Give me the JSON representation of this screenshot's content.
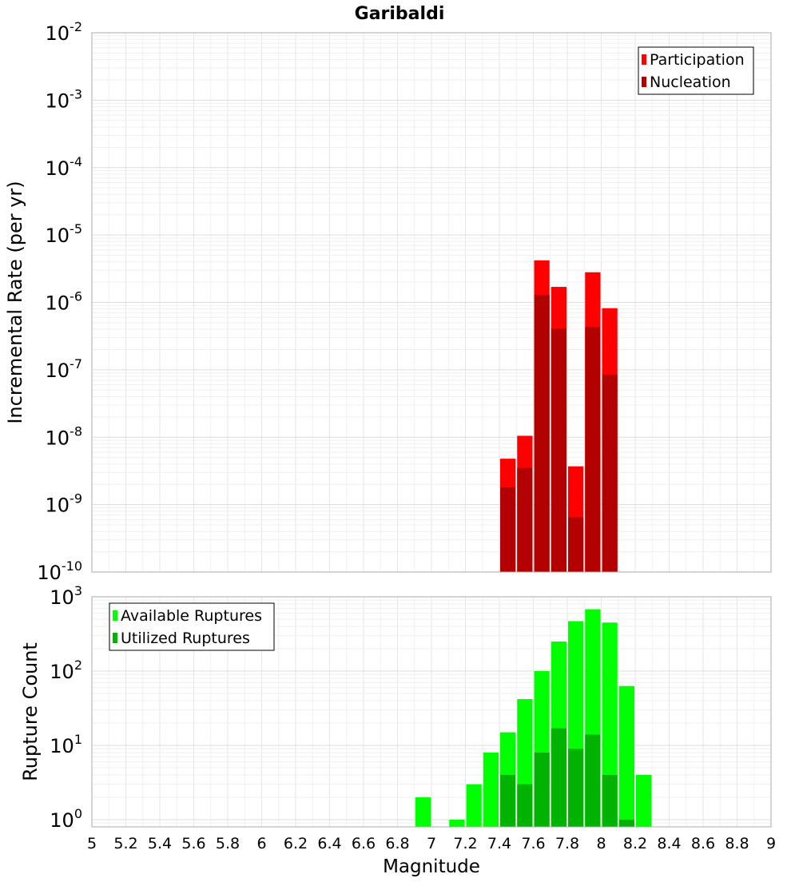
{
  "chart_data": [
    {
      "type": "bar",
      "title": "Garibaldi",
      "ylabel": "Incremental Rate (per yr)",
      "yscale": "log",
      "ylim": [
        1e-10,
        0.01
      ],
      "xlim": [
        5,
        9
      ],
      "grid": true,
      "legend_position": "top-right",
      "y_tick_labels": [
        {
          "value": 1e-10,
          "base": "10",
          "exp": "-10"
        },
        {
          "value": 1e-09,
          "base": "10",
          "exp": "-9"
        },
        {
          "value": 1e-08,
          "base": "10",
          "exp": "-8"
        },
        {
          "value": 1e-07,
          "base": "10",
          "exp": "-7"
        },
        {
          "value": 1e-06,
          "base": "10",
          "exp": "-6"
        },
        {
          "value": 1e-05,
          "base": "10",
          "exp": "-5"
        },
        {
          "value": 0.0001,
          "base": "10",
          "exp": "-4"
        },
        {
          "value": 0.001,
          "base": "10",
          "exp": "-3"
        },
        {
          "value": 0.01,
          "base": "10",
          "exp": "-2"
        }
      ],
      "x": [
        7.45,
        7.55,
        7.65,
        7.75,
        7.85,
        7.95,
        8.05
      ],
      "bin_width": 0.1,
      "series": [
        {
          "name": "Participation",
          "color": "#ff0000",
          "values": [
            4.8e-09,
            1.05e-08,
            4.2e-06,
            1.7e-06,
            3.7e-09,
            2.8e-06,
            8.2e-07
          ]
        },
        {
          "name": "Nucleation",
          "color": "#b30000",
          "values": [
            1.8e-09,
            3.5e-09,
            1.3e-06,
            4.1e-07,
            6.5e-10,
            4.3e-07,
            8.5e-08
          ]
        }
      ]
    },
    {
      "type": "bar",
      "ylabel": "Rupture Count",
      "xlabel": "Magnitude",
      "yscale": "log",
      "ylim": [
        0.8,
        1000
      ],
      "xlim": [
        5,
        9
      ],
      "grid": true,
      "legend_position": "top-left",
      "y_tick_labels": [
        {
          "value": 1,
          "base": "10",
          "exp": "0"
        },
        {
          "value": 10,
          "base": "10",
          "exp": "1"
        },
        {
          "value": 100,
          "base": "10",
          "exp": "2"
        },
        {
          "value": 1000,
          "base": "10",
          "exp": "3"
        }
      ],
      "x_tick_labels": [
        "5",
        "5.2",
        "5.4",
        "5.6",
        "5.8",
        "6",
        "6.2",
        "6.4",
        "6.6",
        "6.8",
        "7",
        "7.2",
        "7.4",
        "7.6",
        "7.8",
        "8",
        "8.2",
        "8.4",
        "8.6",
        "8.8",
        "9"
      ],
      "x": [
        6.95,
        7.05,
        7.15,
        7.25,
        7.35,
        7.45,
        7.55,
        7.65,
        7.75,
        7.85,
        7.95,
        8.05,
        8.15,
        8.25
      ],
      "bin_width": 0.1,
      "series": [
        {
          "name": "Available Ruptures",
          "color": "#00ff00",
          "values": [
            2,
            0,
            1,
            3,
            8,
            15,
            42,
            100,
            250,
            470,
            680,
            450,
            63,
            4
          ]
        },
        {
          "name": "Utilized Ruptures",
          "color": "#00b300",
          "values": [
            0,
            0,
            0,
            0,
            0,
            4,
            3,
            8,
            17,
            9,
            14,
            4,
            1,
            0
          ]
        }
      ]
    }
  ]
}
